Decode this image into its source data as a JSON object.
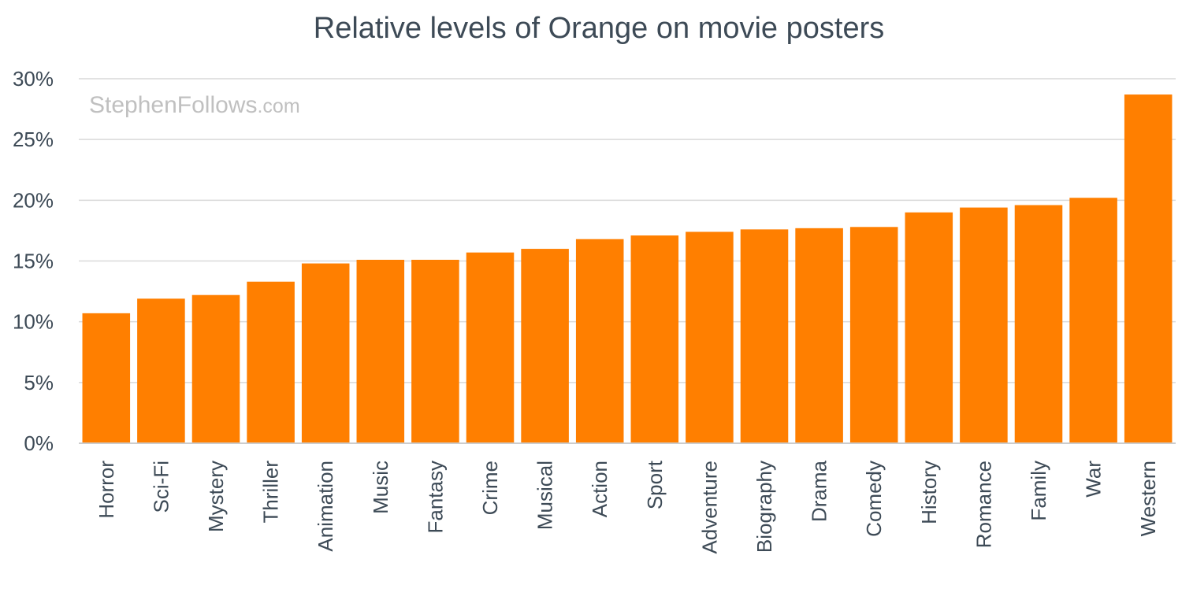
{
  "chart_data": {
    "type": "bar",
    "title": "Relative levels of Orange on movie posters",
    "watermark": {
      "main": "StephenFollows",
      "suffix": ".com"
    },
    "categories": [
      "Horror",
      "Sci-Fi",
      "Mystery",
      "Thriller",
      "Animation",
      "Music",
      "Fantasy",
      "Crime",
      "Musical",
      "Action",
      "Sport",
      "Adventure",
      "Biography",
      "Drama",
      "Comedy",
      "History",
      "Romance",
      "Family",
      "War",
      "Western"
    ],
    "values": [
      10.7,
      11.9,
      12.2,
      13.3,
      14.8,
      15.1,
      15.1,
      15.7,
      16.0,
      16.8,
      17.1,
      17.4,
      17.6,
      17.7,
      17.8,
      19.0,
      19.4,
      19.6,
      20.2,
      28.7
    ],
    "y_ticks": [
      "0%",
      "5%",
      "10%",
      "15%",
      "20%",
      "25%",
      "30%"
    ],
    "y_tick_values": [
      0,
      5,
      10,
      15,
      20,
      25,
      30
    ],
    "ylim": [
      0,
      30
    ],
    "xlabel": "",
    "ylabel": "",
    "grid": true,
    "legend": "none",
    "bar_color": "#ff7f00"
  }
}
